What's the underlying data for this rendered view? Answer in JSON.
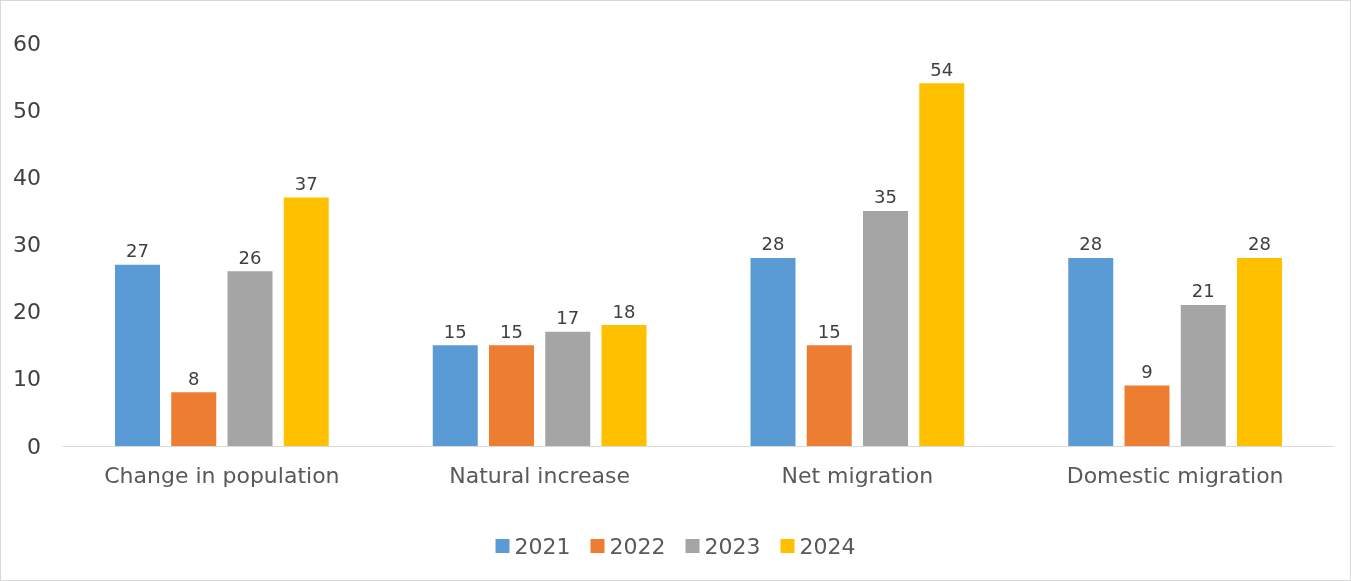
{
  "chart_data": {
    "type": "bar",
    "categories": [
      "Change in population",
      "Natural increase",
      "Net migration",
      "Domestic migration"
    ],
    "series": [
      {
        "name": "2021",
        "color": "#5b9bd5",
        "values": [
          27,
          15,
          28,
          28
        ]
      },
      {
        "name": "2022",
        "color": "#ed7d31",
        "values": [
          8,
          15,
          15,
          9
        ]
      },
      {
        "name": "2023",
        "color": "#a5a5a5",
        "values": [
          26,
          17,
          35,
          21
        ]
      },
      {
        "name": "2024",
        "color": "#ffc000",
        "values": [
          37,
          18,
          54,
          28
        ]
      }
    ],
    "ylim": [
      0,
      60
    ],
    "yticks": [
      0,
      10,
      20,
      30,
      40,
      50,
      60
    ],
    "grid": false,
    "legend": "bottom",
    "data_labels": true
  }
}
